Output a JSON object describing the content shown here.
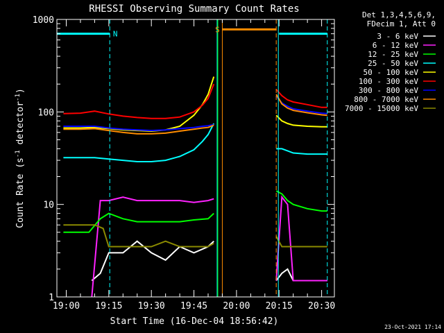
{
  "chart_data": {
    "type": "line",
    "title": "RHESSI Observing Summary Count Rates",
    "xlabel": "Start Time (16-Dec-04 18:56:42)",
    "ylabel_pre": "Count Rate (s",
    "ylabel_exp1": "-1",
    "ylabel_mid": " detector",
    "ylabel_exp2": "-1",
    "ylabel_post": ")",
    "ylabel_full": "Count Rate (s^-1 detector^-1)",
    "yscale": "log",
    "xlim": [
      "18:56:42",
      "20:34:30"
    ],
    "ylim": [
      1,
      1000
    ],
    "x_ticks": [
      "19:00",
      "19:15",
      "19:30",
      "19:45",
      "20:00",
      "20:15",
      "20:30"
    ],
    "y_ticks": [
      {
        "value": 1,
        "label": "1"
      },
      {
        "value": 10,
        "label": "10"
      },
      {
        "value": 100,
        "label": "100"
      },
      {
        "value": 1000,
        "label": "1000"
      }
    ],
    "legend_header": [
      "Det 1,3,4,5,6,9,",
      "FDecim 1, Att 0"
    ],
    "legend_position": "outside-right",
    "series": [
      {
        "name": "3 - 6 keV",
        "color": "#ffffff",
        "x": [
          "19:09",
          "19:12",
          "19:15",
          "19:20",
          "19:25",
          "19:30",
          "19:35",
          "19:40",
          "19:45",
          "19:50",
          "19:52",
          "20:14",
          "20:16",
          "20:18",
          "20:20",
          "20:25",
          "20:30",
          "20:32"
        ],
        "y": [
          1.5,
          1.8,
          3,
          3,
          4,
          3,
          2.5,
          3.5,
          3,
          3.5,
          4,
          1.5,
          1.8,
          2,
          1.5,
          1.5,
          1.5,
          1.5
        ]
      },
      {
        "name": "6 - 12 keV",
        "color": "#ff22ff",
        "x": [
          "19:09",
          "19:12",
          "19:15",
          "19:20",
          "19:25",
          "19:30",
          "19:35",
          "19:40",
          "19:45",
          "19:50",
          "19:52",
          "20:14",
          "20:16",
          "20:18",
          "20:20",
          "20:25",
          "20:30",
          "20:32"
        ],
        "y": [
          1,
          11,
          11,
          12,
          11,
          11,
          11,
          11,
          10.5,
          11,
          11.5,
          1.5,
          12,
          10,
          1.5,
          1.5,
          1.5,
          1.5
        ]
      },
      {
        "name": "12 - 25 keV",
        "color": "#00ff00",
        "x": [
          "18:59",
          "19:08",
          "19:12",
          "19:15",
          "19:20",
          "19:25",
          "19:30",
          "19:35",
          "19:40",
          "19:45",
          "19:50",
          "19:52",
          "20:14",
          "20:16",
          "20:18",
          "20:20",
          "20:25",
          "20:30",
          "20:32"
        ],
        "y": [
          5,
          5,
          7,
          8,
          7,
          6.5,
          6.5,
          6.5,
          6.5,
          6.8,
          7,
          8,
          14,
          13,
          11,
          10,
          9,
          8.5,
          8.5
        ]
      },
      {
        "name": "25 - 50 keV",
        "color": "#00ffff",
        "x": [
          "18:59",
          "19:05",
          "19:10",
          "19:15",
          "19:20",
          "19:25",
          "19:30",
          "19:35",
          "19:40",
          "19:45",
          "19:48",
          "19:50",
          "19:52",
          "20:14",
          "20:16",
          "20:18",
          "20:20",
          "20:25",
          "20:30",
          "20:32"
        ],
        "y": [
          32,
          32,
          32,
          31,
          30,
          29,
          29,
          30,
          33,
          39,
          48,
          57,
          75,
          40,
          40,
          38,
          36,
          35,
          35,
          35
        ]
      },
      {
        "name": "50 - 100 keV",
        "color": "#ffff00",
        "x": [
          "18:59",
          "19:05",
          "19:10",
          "19:15",
          "19:20",
          "19:25",
          "19:30",
          "19:35",
          "19:40",
          "19:45",
          "19:48",
          "19:50",
          "19:52",
          "20:14",
          "20:16",
          "20:18",
          "20:20",
          "20:25",
          "20:30",
          "20:32"
        ],
        "y": [
          67,
          67,
          68,
          66,
          64,
          63,
          62,
          64,
          70,
          92,
          120,
          155,
          240,
          92,
          80,
          75,
          72,
          70,
          69,
          69
        ]
      },
      {
        "name": "100 - 300 keV",
        "color": "#ff0000",
        "x": [
          "18:59",
          "19:05",
          "19:10",
          "19:15",
          "19:20",
          "19:25",
          "19:30",
          "19:35",
          "19:40",
          "19:45",
          "19:48",
          "19:50",
          "19:52",
          "20:14",
          "20:16",
          "20:18",
          "20:20",
          "20:25",
          "20:30",
          "20:32"
        ],
        "y": [
          96,
          97,
          102,
          95,
          90,
          87,
          85,
          85,
          88,
          100,
          118,
          140,
          200,
          175,
          150,
          135,
          128,
          120,
          112,
          112
        ]
      },
      {
        "name": "300 - 800 keV",
        "color": "#0000ff",
        "x": [
          "18:59",
          "19:05",
          "19:10",
          "19:15",
          "19:20",
          "19:25",
          "19:30",
          "19:35",
          "19:40",
          "19:45",
          "19:48",
          "19:50",
          "19:52",
          "20:14",
          "20:16",
          "20:18",
          "20:20",
          "20:25",
          "20:30",
          "20:32"
        ],
        "y": [
          70,
          70,
          70,
          67,
          65,
          64,
          63,
          64,
          66,
          68,
          70,
          71,
          73,
          148,
          125,
          115,
          108,
          102,
          97,
          96
        ]
      },
      {
        "name": "800 - 7000 keV",
        "color": "#ff8c00",
        "x": [
          "18:59",
          "19:05",
          "19:10",
          "19:15",
          "19:20",
          "19:25",
          "19:30",
          "19:35",
          "19:40",
          "19:45",
          "19:48",
          "19:50",
          "19:52",
          "20:14",
          "20:16",
          "20:18",
          "20:20",
          "20:25",
          "20:30",
          "20:32"
        ],
        "y": [
          65,
          65,
          66,
          63,
          60,
          58,
          58,
          59,
          62,
          65,
          67,
          68,
          72,
          155,
          122,
          110,
          104,
          98,
          93,
          92
        ]
      },
      {
        "name": "7000 - 15000 keV",
        "color": "#8b8b00",
        "x": [
          "18:59",
          "19:05",
          "19:10",
          "19:13",
          "19:15",
          "19:20",
          "19:25",
          "19:30",
          "19:35",
          "19:40",
          "19:45",
          "19:50",
          "19:52",
          "20:14",
          "20:16",
          "20:18",
          "20:20",
          "20:25",
          "20:30",
          "20:32"
        ],
        "y": [
          6,
          6,
          6,
          5.5,
          3.5,
          3.5,
          3.5,
          3.5,
          4,
          3.5,
          3.5,
          3.5,
          3.8,
          4.5,
          3.5,
          3.5,
          3.5,
          3.5,
          3.5,
          3.5
        ]
      }
    ],
    "intervals": [
      {
        "label": "N",
        "color": "#00ffff",
        "start": "18:56:42",
        "end": "19:15:20",
        "level": 700
      },
      {
        "label": "S",
        "color": "#ff8c00",
        "start": "19:55:00",
        "end": "20:14:00",
        "level": 780
      },
      {
        "label": "",
        "color": "#00ffff",
        "start": "20:15:00",
        "end": "20:32:00",
        "level": 700
      }
    ],
    "markers": [
      {
        "t": "19:15:20",
        "color": "#00ffff",
        "style": "dashed"
      },
      {
        "t": "19:53:10",
        "color": "#00ffff",
        "style": "solid"
      },
      {
        "t": "19:53:25",
        "color": "#00ff00",
        "style": "solid"
      },
      {
        "t": "19:55:00",
        "color": "#ff8c00",
        "style": "solid"
      },
      {
        "t": "20:14:00",
        "color": "#ff8c00",
        "style": "dashed"
      },
      {
        "t": "20:14:45",
        "color": "#00ffff",
        "style": "solid"
      },
      {
        "t": "20:32:00",
        "color": "#00ffff",
        "style": "dashed"
      }
    ],
    "footer_date": "23-Oct-2021 17:14"
  }
}
